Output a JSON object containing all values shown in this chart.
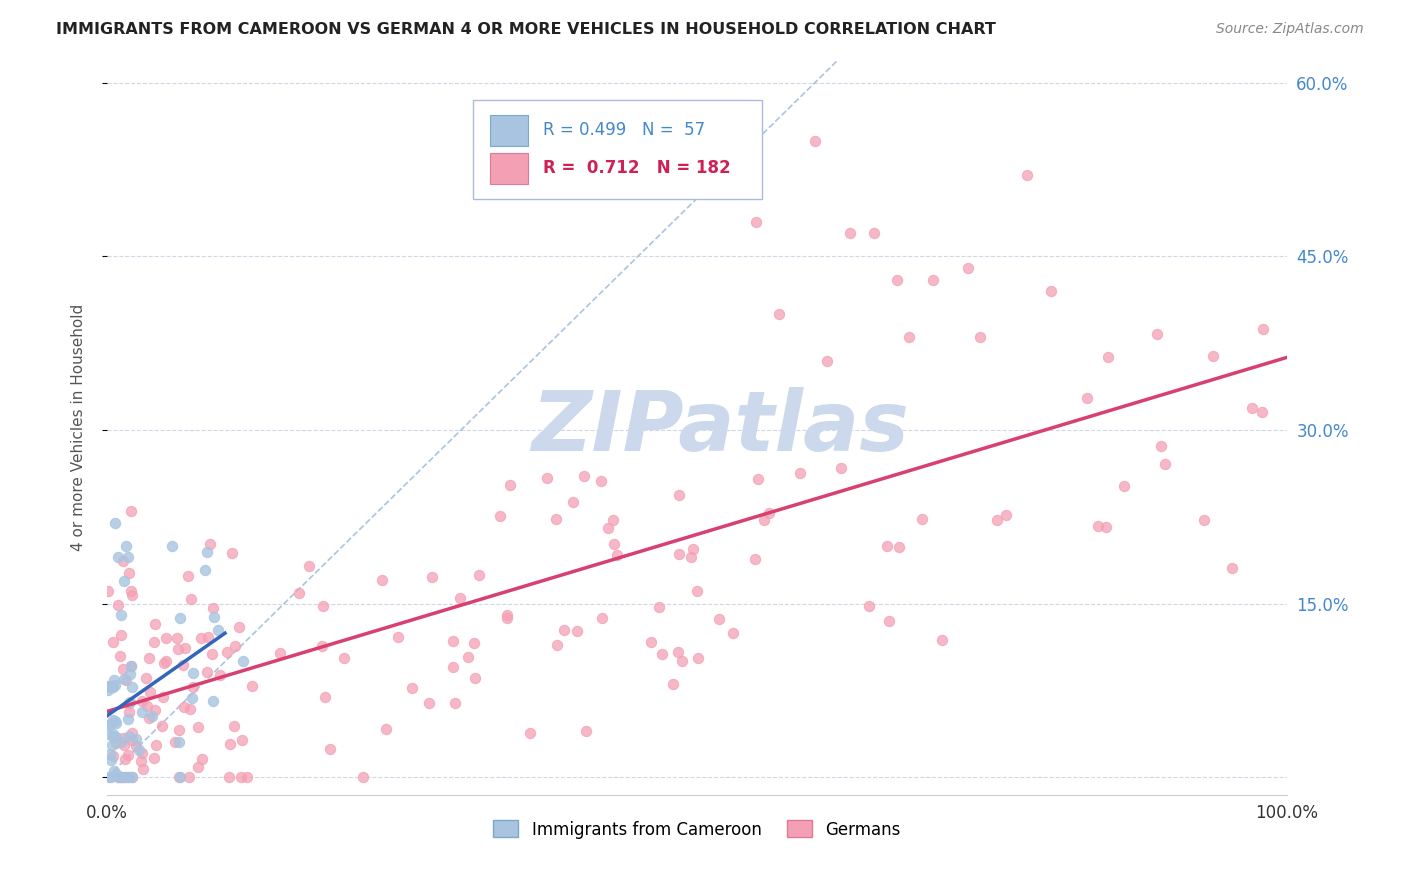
{
  "title": "IMMIGRANTS FROM CAMEROON VS GERMAN 4 OR MORE VEHICLES IN HOUSEHOLD CORRELATION CHART",
  "source": "Source: ZipAtlas.com",
  "ylabel": "4 or more Vehicles in Household",
  "xlim": [
    0.0,
    1.0
  ],
  "ylim": [
    -0.015,
    0.62
  ],
  "xticks": [
    0.0,
    0.1,
    0.2,
    0.3,
    0.4,
    0.5,
    0.6,
    0.7,
    0.8,
    0.9,
    1.0
  ],
  "xtick_labels": [
    "0.0%",
    "",
    "",
    "",
    "",
    "",
    "",
    "",
    "",
    "",
    "100.0%"
  ],
  "ytick_positions": [
    0.0,
    0.15,
    0.3,
    0.45,
    0.6
  ],
  "ytick_labels_right": [
    "",
    "15.0%",
    "30.0%",
    "45.0%",
    "60.0%"
  ],
  "cameroon_R": 0.499,
  "cameroon_N": 57,
  "german_R": 0.712,
  "german_N": 182,
  "cameroon_color": "#a8c4e0",
  "cameroon_edge_color": "#7aaac8",
  "german_color": "#f4a0b4",
  "german_edge_color": "#e07898",
  "cameroon_line_color": "#3366bb",
  "german_line_color": "#d84070",
  "diagonal_color": "#aac4e0",
  "background_color": "#ffffff",
  "grid_color": "#d0d8e8",
  "watermark_text": "ZIPatlas",
  "watermark_color": "#ccd8ec",
  "title_color": "#222222",
  "source_color": "#888888",
  "ylabel_color": "#555555",
  "right_tick_color": "#4488cc",
  "legend_border_color": "#aabcd8"
}
